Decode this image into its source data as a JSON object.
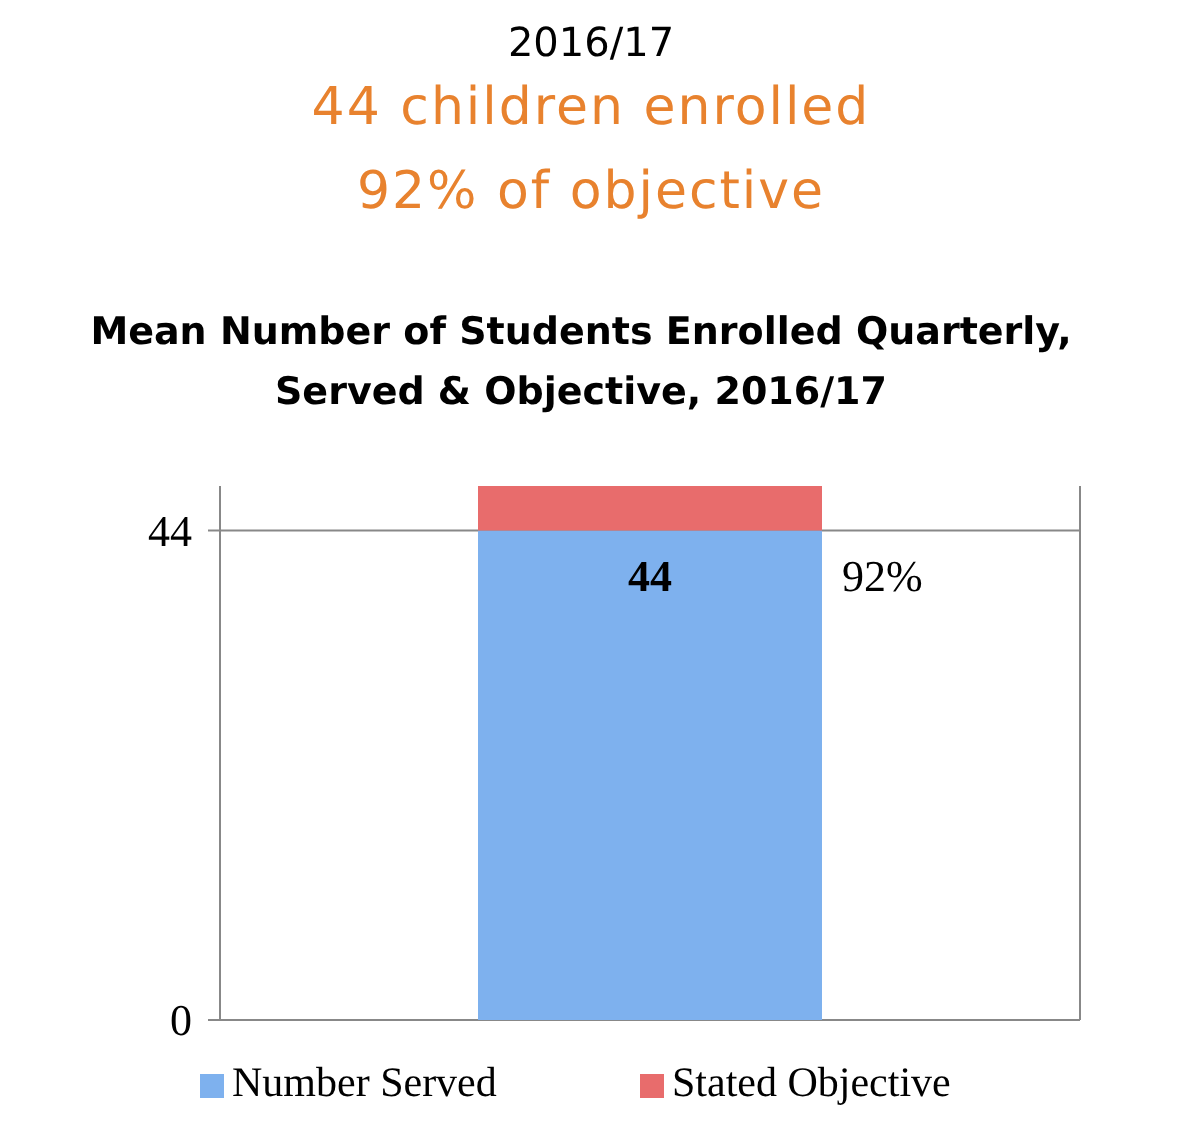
{
  "chart_data": {
    "type": "bar",
    "stacked": true,
    "title": "Mean Number of Students Enrolled Quarterly, Served & Objective, 2016/17",
    "annotations": [
      "2016/17",
      "44 children enrolled",
      "92% of objective",
      "92%"
    ],
    "categories": [
      null
    ],
    "series": [
      {
        "name": "Number Served",
        "color": "#7eb1ee",
        "values": [
          44
        ],
        "value_labels": [
          "44"
        ]
      },
      {
        "name": "Stated Objective",
        "color": "#e86c6c",
        "values": [
          4
        ]
      }
    ],
    "ylim": [
      0,
      48
    ],
    "yticks": [
      0,
      44
    ],
    "grid": "y",
    "legend": "bottom"
  }
}
